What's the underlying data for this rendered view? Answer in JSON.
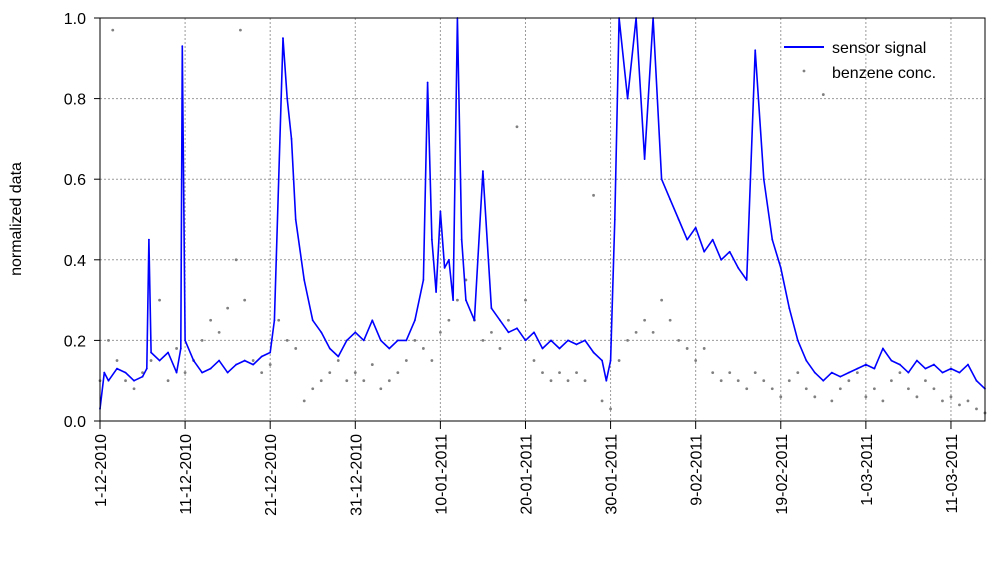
{
  "chart_data": {
    "type": "line",
    "ylabel": "normalized data",
    "xlabel": "",
    "ylim": [
      0,
      1
    ],
    "yticks": [
      "0.0",
      "0.2",
      "0.4",
      "0.6",
      "0.8",
      "1.0"
    ],
    "xlim": [
      "2010-12-01",
      "2011-03-15"
    ],
    "xticks": [
      {
        "date": "2010-12-01",
        "label": "1-12-2010"
      },
      {
        "date": "2010-12-11",
        "label": "11-12-2010"
      },
      {
        "date": "2010-12-21",
        "label": "21-12-2010"
      },
      {
        "date": "2010-12-31",
        "label": "31-12-2010"
      },
      {
        "date": "2011-01-10",
        "label": "10-01-2011"
      },
      {
        "date": "2011-01-20",
        "label": "20-01-2011"
      },
      {
        "date": "2011-01-30",
        "label": "30-01-2011"
      },
      {
        "date": "2011-02-09",
        "label": "9-02-2011"
      },
      {
        "date": "2011-02-19",
        "label": "19-02-2011"
      },
      {
        "date": "2011-03-01",
        "label": "1-03-2011"
      },
      {
        "date": "2011-03-11",
        "label": "11-03-2011"
      }
    ],
    "grid": true,
    "legend_position": "top-right",
    "series": [
      {
        "name": "sensor signal",
        "style": "line",
        "color": "#0000ff",
        "points": [
          [
            "2010-12-01",
            0.03
          ],
          [
            "2010-12-01T12:00",
            0.12
          ],
          [
            "2010-12-02",
            0.1
          ],
          [
            "2010-12-03",
            0.13
          ],
          [
            "2010-12-04",
            0.12
          ],
          [
            "2010-12-05",
            0.1
          ],
          [
            "2010-12-06",
            0.11
          ],
          [
            "2010-12-06T12:00",
            0.13
          ],
          [
            "2010-12-06T18:00",
            0.45
          ],
          [
            "2010-12-07",
            0.17
          ],
          [
            "2010-12-08",
            0.15
          ],
          [
            "2010-12-09",
            0.17
          ],
          [
            "2010-12-10",
            0.12
          ],
          [
            "2010-12-10T12:00",
            0.18
          ],
          [
            "2010-12-10T16:00",
            0.93
          ],
          [
            "2010-12-11",
            0.2
          ],
          [
            "2010-12-12",
            0.15
          ],
          [
            "2010-12-13",
            0.12
          ],
          [
            "2010-12-14",
            0.13
          ],
          [
            "2010-12-15",
            0.15
          ],
          [
            "2010-12-16",
            0.12
          ],
          [
            "2010-12-17",
            0.14
          ],
          [
            "2010-12-18",
            0.15
          ],
          [
            "2010-12-19",
            0.14
          ],
          [
            "2010-12-20",
            0.16
          ],
          [
            "2010-12-21",
            0.17
          ],
          [
            "2010-12-21T12:00",
            0.25
          ],
          [
            "2010-12-22",
            0.6
          ],
          [
            "2010-12-22T12:00",
            0.95
          ],
          [
            "2010-12-23",
            0.8
          ],
          [
            "2010-12-23T12:00",
            0.7
          ],
          [
            "2010-12-24",
            0.5
          ],
          [
            "2010-12-25",
            0.35
          ],
          [
            "2010-12-26",
            0.25
          ],
          [
            "2010-12-27",
            0.22
          ],
          [
            "2010-12-28",
            0.18
          ],
          [
            "2010-12-29",
            0.16
          ],
          [
            "2010-12-30",
            0.2
          ],
          [
            "2010-12-31",
            0.22
          ],
          [
            "2011-01-01",
            0.2
          ],
          [
            "2011-01-02",
            0.25
          ],
          [
            "2011-01-03",
            0.2
          ],
          [
            "2011-01-04",
            0.18
          ],
          [
            "2011-01-05",
            0.2
          ],
          [
            "2011-01-06",
            0.2
          ],
          [
            "2011-01-07",
            0.25
          ],
          [
            "2011-01-08",
            0.35
          ],
          [
            "2011-01-08T12:00",
            0.84
          ],
          [
            "2011-01-09",
            0.45
          ],
          [
            "2011-01-09T12:00",
            0.32
          ],
          [
            "2011-01-10",
            0.52
          ],
          [
            "2011-01-10T12:00",
            0.38
          ],
          [
            "2011-01-11",
            0.4
          ],
          [
            "2011-01-11T12:00",
            0.3
          ],
          [
            "2011-01-12",
            1.0
          ],
          [
            "2011-01-12T12:00",
            0.45
          ],
          [
            "2011-01-13",
            0.3
          ],
          [
            "2011-01-14",
            0.25
          ],
          [
            "2011-01-15",
            0.62
          ],
          [
            "2011-01-16",
            0.28
          ],
          [
            "2011-01-17",
            0.25
          ],
          [
            "2011-01-18",
            0.22
          ],
          [
            "2011-01-19",
            0.23
          ],
          [
            "2011-01-20",
            0.2
          ],
          [
            "2011-01-21",
            0.22
          ],
          [
            "2011-01-22",
            0.18
          ],
          [
            "2011-01-23",
            0.2
          ],
          [
            "2011-01-24",
            0.18
          ],
          [
            "2011-01-25",
            0.2
          ],
          [
            "2011-01-26",
            0.19
          ],
          [
            "2011-01-27",
            0.2
          ],
          [
            "2011-01-28",
            0.17
          ],
          [
            "2011-01-29",
            0.15
          ],
          [
            "2011-01-29T12:00",
            0.1
          ],
          [
            "2011-01-30",
            0.15
          ],
          [
            "2011-01-30T12:00",
            0.5
          ],
          [
            "2011-01-31",
            1.0
          ],
          [
            "2011-02-01",
            0.8
          ],
          [
            "2011-02-02",
            1.0
          ],
          [
            "2011-02-03",
            0.65
          ],
          [
            "2011-02-04",
            1.0
          ],
          [
            "2011-02-05",
            0.6
          ],
          [
            "2011-02-06",
            0.55
          ],
          [
            "2011-02-07",
            0.5
          ],
          [
            "2011-02-08",
            0.45
          ],
          [
            "2011-02-09",
            0.48
          ],
          [
            "2011-02-10",
            0.42
          ],
          [
            "2011-02-11",
            0.45
          ],
          [
            "2011-02-12",
            0.4
          ],
          [
            "2011-02-13",
            0.42
          ],
          [
            "2011-02-14",
            0.38
          ],
          [
            "2011-02-15",
            0.35
          ],
          [
            "2011-02-16",
            0.92
          ],
          [
            "2011-02-17",
            0.6
          ],
          [
            "2011-02-18",
            0.45
          ],
          [
            "2011-02-19",
            0.38
          ],
          [
            "2011-02-20",
            0.28
          ],
          [
            "2011-02-21",
            0.2
          ],
          [
            "2011-02-22",
            0.15
          ],
          [
            "2011-02-23",
            0.12
          ],
          [
            "2011-02-24",
            0.1
          ],
          [
            "2011-02-25",
            0.12
          ],
          [
            "2011-02-26",
            0.11
          ],
          [
            "2011-02-27",
            0.12
          ],
          [
            "2011-02-28",
            0.13
          ],
          [
            "2011-03-01",
            0.14
          ],
          [
            "2011-03-02",
            0.13
          ],
          [
            "2011-03-03",
            0.18
          ],
          [
            "2011-03-04",
            0.15
          ],
          [
            "2011-03-05",
            0.14
          ],
          [
            "2011-03-06",
            0.12
          ],
          [
            "2011-03-07",
            0.15
          ],
          [
            "2011-03-08",
            0.13
          ],
          [
            "2011-03-09",
            0.14
          ],
          [
            "2011-03-10",
            0.12
          ],
          [
            "2011-03-11",
            0.13
          ],
          [
            "2011-03-12",
            0.12
          ],
          [
            "2011-03-13",
            0.14
          ],
          [
            "2011-03-14",
            0.1
          ],
          [
            "2011-03-15",
            0.08
          ]
        ]
      },
      {
        "name": "benzene conc.",
        "style": "dots",
        "color": "#808080",
        "points": [
          [
            "2010-12-01",
            0.1
          ],
          [
            "2010-12-02",
            0.2
          ],
          [
            "2010-12-02T12:00",
            0.97
          ],
          [
            "2010-12-03",
            0.15
          ],
          [
            "2010-12-04",
            0.1
          ],
          [
            "2010-12-05",
            0.08
          ],
          [
            "2010-12-06",
            0.12
          ],
          [
            "2010-12-07",
            0.15
          ],
          [
            "2010-12-08",
            0.3
          ],
          [
            "2010-12-09",
            0.1
          ],
          [
            "2010-12-10",
            0.18
          ],
          [
            "2010-12-11",
            0.12
          ],
          [
            "2010-12-12",
            0.15
          ],
          [
            "2010-12-13",
            0.2
          ],
          [
            "2010-12-14",
            0.25
          ],
          [
            "2010-12-15",
            0.22
          ],
          [
            "2010-12-16",
            0.28
          ],
          [
            "2010-12-17",
            0.4
          ],
          [
            "2010-12-17T12:00",
            0.97
          ],
          [
            "2010-12-18",
            0.3
          ],
          [
            "2010-12-19",
            0.15
          ],
          [
            "2010-12-20",
            0.12
          ],
          [
            "2010-12-21",
            0.14
          ],
          [
            "2010-12-22",
            0.25
          ],
          [
            "2010-12-23",
            0.2
          ],
          [
            "2010-12-24",
            0.18
          ],
          [
            "2010-12-25",
            0.05
          ],
          [
            "2010-12-26",
            0.08
          ],
          [
            "2010-12-27",
            0.1
          ],
          [
            "2010-12-28",
            0.12
          ],
          [
            "2010-12-29",
            0.15
          ],
          [
            "2010-12-30",
            0.1
          ],
          [
            "2010-12-31",
            0.12
          ],
          [
            "2011-01-01",
            0.1
          ],
          [
            "2011-01-02",
            0.14
          ],
          [
            "2011-01-03",
            0.08
          ],
          [
            "2011-01-04",
            0.1
          ],
          [
            "2011-01-05",
            0.12
          ],
          [
            "2011-01-06",
            0.15
          ],
          [
            "2011-01-07",
            0.2
          ],
          [
            "2011-01-08",
            0.18
          ],
          [
            "2011-01-09",
            0.15
          ],
          [
            "2011-01-10",
            0.22
          ],
          [
            "2011-01-11",
            0.25
          ],
          [
            "2011-01-12",
            0.3
          ],
          [
            "2011-01-13",
            0.35
          ],
          [
            "2011-01-14",
            0.25
          ],
          [
            "2011-01-15",
            0.2
          ],
          [
            "2011-01-16",
            0.22
          ],
          [
            "2011-01-17",
            0.18
          ],
          [
            "2011-01-18",
            0.25
          ],
          [
            "2011-01-19",
            0.73
          ],
          [
            "2011-01-20",
            0.3
          ],
          [
            "2011-01-21",
            0.15
          ],
          [
            "2011-01-22",
            0.12
          ],
          [
            "2011-01-23",
            0.1
          ],
          [
            "2011-01-24",
            0.12
          ],
          [
            "2011-01-25",
            0.1
          ],
          [
            "2011-01-26",
            0.12
          ],
          [
            "2011-01-27",
            0.1
          ],
          [
            "2011-01-28",
            0.56
          ],
          [
            "2011-01-29",
            0.05
          ],
          [
            "2011-01-30",
            0.03
          ],
          [
            "2011-01-31",
            0.15
          ],
          [
            "2011-02-01",
            0.2
          ],
          [
            "2011-02-02",
            0.22
          ],
          [
            "2011-02-03",
            0.25
          ],
          [
            "2011-02-04",
            0.22
          ],
          [
            "2011-02-05",
            0.3
          ],
          [
            "2011-02-06",
            0.25
          ],
          [
            "2011-02-07",
            0.2
          ],
          [
            "2011-02-08",
            0.18
          ],
          [
            "2011-02-09",
            0.15
          ],
          [
            "2011-02-10",
            0.18
          ],
          [
            "2011-02-11",
            0.12
          ],
          [
            "2011-02-12",
            0.1
          ],
          [
            "2011-02-13",
            0.12
          ],
          [
            "2011-02-14",
            0.1
          ],
          [
            "2011-02-15",
            0.08
          ],
          [
            "2011-02-16",
            0.12
          ],
          [
            "2011-02-17",
            0.1
          ],
          [
            "2011-02-18",
            0.08
          ],
          [
            "2011-02-19",
            0.06
          ],
          [
            "2011-02-20",
            0.1
          ],
          [
            "2011-02-21",
            0.12
          ],
          [
            "2011-02-22",
            0.08
          ],
          [
            "2011-02-23",
            0.06
          ],
          [
            "2011-02-24",
            0.81
          ],
          [
            "2011-02-25",
            0.05
          ],
          [
            "2011-02-26",
            0.08
          ],
          [
            "2011-02-27",
            0.1
          ],
          [
            "2011-02-28",
            0.12
          ],
          [
            "2011-03-01",
            0.06
          ],
          [
            "2011-03-02",
            0.08
          ],
          [
            "2011-03-03",
            0.05
          ],
          [
            "2011-03-04",
            0.1
          ],
          [
            "2011-03-05",
            0.12
          ],
          [
            "2011-03-06",
            0.08
          ],
          [
            "2011-03-07",
            0.06
          ],
          [
            "2011-03-08",
            0.1
          ],
          [
            "2011-03-09",
            0.08
          ],
          [
            "2011-03-10",
            0.05
          ],
          [
            "2011-03-11",
            0.06
          ],
          [
            "2011-03-12",
            0.04
          ],
          [
            "2011-03-13",
            0.05
          ],
          [
            "2011-03-14",
            0.03
          ],
          [
            "2011-03-15",
            0.02
          ]
        ]
      }
    ]
  }
}
